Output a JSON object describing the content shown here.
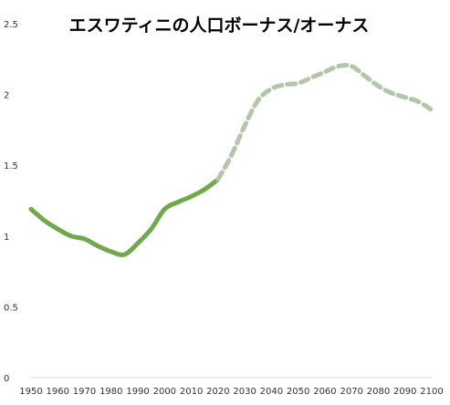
{
  "chart_data": {
    "type": "line",
    "title": "エスワティニの人口ボーナス/オーナス",
    "xlabel": "",
    "ylabel": "",
    "xlim": [
      1950,
      2100
    ],
    "ylim": [
      0,
      2.5
    ],
    "x_ticks": [
      "1950",
      "1960",
      "1970",
      "1980",
      "1990",
      "2000",
      "2010",
      "2020",
      "2030",
      "2040",
      "2050",
      "2060",
      "2070",
      "2080",
      "2090",
      "2100"
    ],
    "y_ticks": [
      "0",
      "0.5",
      "1",
      "1.5",
      "2",
      "2.5"
    ],
    "grid": false,
    "legend": "none",
    "series": [
      {
        "style": "solid",
        "color": "#70a84c",
        "points": [
          [
            1950,
            1.19
          ],
          [
            1955,
            1.11
          ],
          [
            1960,
            1.05
          ],
          [
            1965,
            1.0
          ],
          [
            1970,
            0.98
          ],
          [
            1975,
            0.93
          ],
          [
            1980,
            0.89
          ],
          [
            1985,
            0.87
          ],
          [
            1990,
            0.95
          ],
          [
            1995,
            1.05
          ],
          [
            2000,
            1.19
          ],
          [
            2005,
            1.24
          ],
          [
            2010,
            1.28
          ],
          [
            2015,
            1.33
          ],
          [
            2020,
            1.4
          ]
        ]
      },
      {
        "style": "dashed",
        "color": "#b3c7a6",
        "points": [
          [
            2020,
            1.4
          ],
          [
            2025,
            1.57
          ],
          [
            2030,
            1.78
          ],
          [
            2035,
            1.96
          ],
          [
            2040,
            2.04
          ],
          [
            2045,
            2.07
          ],
          [
            2050,
            2.08
          ],
          [
            2055,
            2.12
          ],
          [
            2060,
            2.16
          ],
          [
            2065,
            2.2
          ],
          [
            2070,
            2.2
          ],
          [
            2075,
            2.13
          ],
          [
            2080,
            2.06
          ],
          [
            2085,
            2.01
          ],
          [
            2090,
            1.98
          ],
          [
            2095,
            1.95
          ],
          [
            2100,
            1.89
          ]
        ]
      }
    ]
  }
}
